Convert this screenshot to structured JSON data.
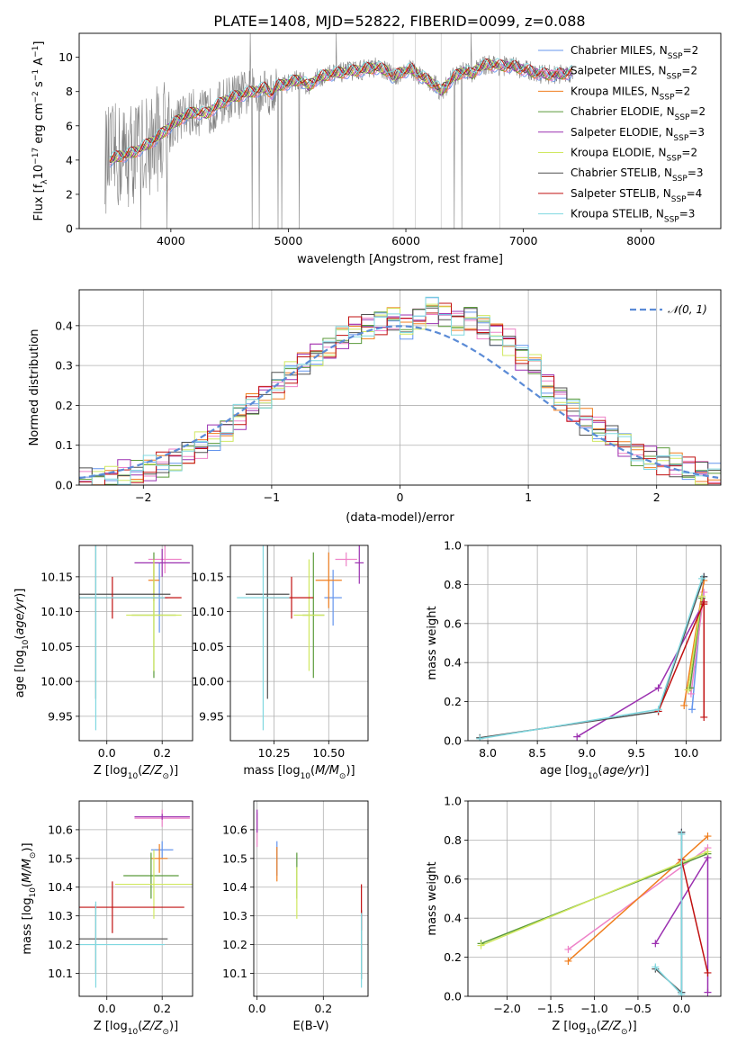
{
  "figure": {
    "title": "PLATE=1408, MJD=52822, FIBERID=0099, z=0.088"
  },
  "chart_data": [
    {
      "id": "spectrum",
      "type": "line",
      "xlabel": "wavelength [Angstrom, rest frame]",
      "ylabel": "Flux [f",
      "ylabel_parts": [
        "Flux [f",
        "λ",
        "10",
        "−17",
        " erg cm",
        "−2",
        " s",
        "−1",
        " A",
        "−1",
        "]"
      ],
      "xlim": [
        3220,
        8680
      ],
      "ylim": [
        0,
        11.4
      ],
      "xticks": [
        4000,
        5000,
        6000,
        7000,
        8000
      ],
      "yticks": [
        0,
        2,
        4,
        6,
        8,
        10
      ],
      "grid": false,
      "legend_position": "right",
      "legend": [
        {
          "pre": "Chabrier MILES, N",
          "sub": "SSP",
          "post": "=2",
          "color": "#6495ed"
        },
        {
          "pre": "Salpeter MILES, N",
          "sub": "SSP",
          "post": "=2",
          "color": "#ee82c8"
        },
        {
          "pre": "Kroupa MILES, N",
          "sub": "SSP",
          "post": "=2",
          "color": "#f07e1e"
        },
        {
          "pre": "Chabrier ELODIE, N",
          "sub": "SSP",
          "post": "=2",
          "color": "#5a9a3a"
        },
        {
          "pre": "Salpeter ELODIE, N",
          "sub": "SSP",
          "post": "=3",
          "color": "#9b30b0"
        },
        {
          "pre": "Kroupa ELODIE, N",
          "sub": "SSP",
          "post": "=2",
          "color": "#d0e860"
        },
        {
          "pre": "Chabrier STELIB, N",
          "sub": "SSP",
          "post": "=3",
          "color": "#505050"
        },
        {
          "pre": "Salpeter STELIB, N",
          "sub": "SSP",
          "post": "=4",
          "color": "#c01010"
        },
        {
          "pre": "Kroupa STELIB, N",
          "sub": "SSP",
          "post": "=3",
          "color": "#80d8e0"
        }
      ],
      "observed_color": "#808080",
      "model_x": [
        3480,
        3550,
        3620,
        3700,
        3800,
        3900,
        4000,
        4100,
        4200,
        4300,
        4400,
        4500,
        4600,
        4700,
        4800,
        4860,
        4900,
        5000,
        5100,
        5175,
        5250,
        5350,
        5450,
        5550,
        5650,
        5750,
        5850,
        5893,
        5950,
        6050,
        6150,
        6250,
        6300,
        6400,
        6500,
        6563,
        6600,
        6700,
        6800,
        6900,
        7000,
        7100,
        7200,
        7300,
        7400,
        7500,
        7600,
        7700,
        7800,
        7900,
        8000,
        8100,
        8200,
        8300,
        8400
      ],
      "model_y": [
        4.0,
        4.2,
        4.3,
        4.5,
        4.9,
        5.4,
        6.0,
        6.5,
        6.8,
        6.7,
        7.2,
        7.6,
        7.8,
        8.0,
        8.2,
        7.9,
        8.3,
        8.5,
        8.7,
        8.3,
        8.8,
        9.0,
        9.1,
        9.2,
        9.3,
        9.4,
        9.2,
        8.8,
        9.1,
        9.3,
        8.8,
        8.4,
        8.0,
        8.8,
        9.2,
        9.0,
        9.3,
        9.6,
        9.5,
        9.5,
        9.3,
        9.1,
        9.0,
        9.0,
        9.1,
        9.2,
        9.3,
        9.3,
        9.4,
        9.4,
        9.4,
        9.5,
        9.5,
        9.5,
        9.6
      ]
    },
    {
      "id": "residuals",
      "type": "histogram",
      "xlabel": "(data-model)/error",
      "ylabel": "Normed distribution",
      "xlim": [
        -2.5,
        2.5
      ],
      "ylim": [
        0,
        0.49
      ],
      "xticks": [
        -2,
        -1,
        0,
        1,
        2
      ],
      "yticks": [
        0.0,
        0.1,
        0.2,
        0.3,
        0.4
      ],
      "grid": true,
      "bin_width": 0.1,
      "legend_position": "upper right",
      "legend_label": "𝒩(0, 1)",
      "gaussian_color": "#5b8bd6",
      "base_bins_x0": [
        -2.5,
        -2.4,
        -2.3,
        -2.2,
        -2.1,
        -2.0,
        -1.9,
        -1.8,
        -1.7,
        -1.6,
        -1.5,
        -1.4,
        -1.3,
        -1.2,
        -1.1,
        -1.0,
        -0.9,
        -0.8,
        -0.7,
        -0.6,
        -0.5,
        -0.4,
        -0.3,
        -0.2,
        -0.1,
        0.0,
        0.1,
        0.2,
        0.3,
        0.4,
        0.5,
        0.6,
        0.7,
        0.8,
        0.9,
        1.0,
        1.1,
        1.2,
        1.3,
        1.4,
        1.5,
        1.6,
        1.7,
        1.8,
        1.9,
        2.0,
        2.1,
        2.2,
        2.3,
        2.4
      ],
      "base_bins_y": [
        0.01,
        0.01,
        0.02,
        0.03,
        0.03,
        0.04,
        0.05,
        0.06,
        0.08,
        0.1,
        0.12,
        0.14,
        0.17,
        0.2,
        0.22,
        0.25,
        0.28,
        0.31,
        0.33,
        0.34,
        0.37,
        0.39,
        0.4,
        0.41,
        0.42,
        0.4,
        0.42,
        0.44,
        0.43,
        0.41,
        0.42,
        0.4,
        0.38,
        0.36,
        0.32,
        0.3,
        0.25,
        0.22,
        0.19,
        0.16,
        0.14,
        0.12,
        0.1,
        0.08,
        0.07,
        0.06,
        0.05,
        0.04,
        0.03,
        0.02
      ],
      "series": [
        {
          "name": "Chabrier MILES",
          "color": "#6495ed"
        },
        {
          "name": "Salpeter MILES",
          "color": "#ee82c8"
        },
        {
          "name": "Kroupa MILES",
          "color": "#f07e1e"
        },
        {
          "name": "Chabrier ELODIE",
          "color": "#5a9a3a"
        },
        {
          "name": "Salpeter ELODIE",
          "color": "#9b30b0"
        },
        {
          "name": "Kroupa ELODIE",
          "color": "#d0e860"
        },
        {
          "name": "Chabrier STELIB",
          "color": "#505050"
        },
        {
          "name": "Salpeter STELIB",
          "color": "#c01010"
        },
        {
          "name": "Kroupa STELIB",
          "color": "#80d8e0"
        }
      ]
    },
    {
      "id": "age_vs_Z",
      "type": "errorbar",
      "xlabel": "Z [log",
      "xlabel_parts": [
        "Z [log",
        "10",
        "(Z/Z",
        "⊙",
        ")]"
      ],
      "ylabel_parts": [
        "age  [log",
        "10",
        "(age/yr)]"
      ],
      "xlim": [
        -0.1,
        0.31
      ],
      "ylim": [
        9.915,
        10.195
      ],
      "xticks": [
        0.0,
        0.2
      ],
      "yticks": [
        9.95,
        10.0,
        10.05,
        10.1,
        10.15
      ],
      "grid": true,
      "points": [
        {
          "x": 0.19,
          "y": 10.12,
          "xerr": 0.03,
          "yerr": 0.05,
          "color": "#6495ed"
        },
        {
          "x": 0.21,
          "y": 10.175,
          "xerr": 0.06,
          "yerr": 0.02,
          "color": "#ee82c8"
        },
        {
          "x": 0.17,
          "y": 10.145,
          "xerr": 0.02,
          "yerr": 0.03,
          "color": "#f07e1e"
        },
        {
          "x": 0.17,
          "y": 10.095,
          "xerr": 0.08,
          "yerr": 0.09,
          "color": "#5a9a3a"
        },
        {
          "x": 0.2,
          "y": 10.17,
          "xerr": 0.1,
          "yerr": 0.02,
          "color": "#9b30b0"
        },
        {
          "x": 0.17,
          "y": 10.095,
          "xerr": 0.1,
          "yerr": 0.08,
          "color": "#d0e860"
        },
        {
          "x": -0.04,
          "y": 10.125,
          "xerr": 0.27,
          "yerr": 0.15,
          "color": "#505050"
        },
        {
          "x": 0.02,
          "y": 10.12,
          "xerr": 0.25,
          "yerr": 0.03,
          "color": "#c01010"
        },
        {
          "x": -0.04,
          "y": 10.12,
          "xerr": 0.25,
          "yerr": 0.19,
          "color": "#80d8e0"
        }
      ]
    },
    {
      "id": "age_vs_mass",
      "type": "errorbar",
      "xlabel_parts": [
        "mass [log",
        "10",
        "(M/M",
        "⊙",
        ")]"
      ],
      "xlim": [
        10.05,
        10.68
      ],
      "ylim": [
        9.915,
        10.195
      ],
      "xticks": [
        10.25,
        10.5
      ],
      "yticks": [
        9.95,
        10.0,
        10.05,
        10.1,
        10.15
      ],
      "grid": true,
      "points": [
        {
          "x": 10.52,
          "y": 10.12,
          "xerr": 0.04,
          "yerr": 0.04,
          "color": "#6495ed"
        },
        {
          "x": 10.58,
          "y": 10.175,
          "xerr": 0.05,
          "yerr": 0.01,
          "color": "#ee82c8"
        },
        {
          "x": 10.5,
          "y": 10.145,
          "xerr": 0.06,
          "yerr": 0.04,
          "color": "#f07e1e"
        },
        {
          "x": 10.43,
          "y": 10.095,
          "xerr": 0.05,
          "yerr": 0.09,
          "color": "#5a9a3a"
        },
        {
          "x": 10.64,
          "y": 10.17,
          "xerr": 0.02,
          "yerr": 0.03,
          "color": "#9b30b0"
        },
        {
          "x": 10.41,
          "y": 10.095,
          "xerr": 0.07,
          "yerr": 0.08,
          "color": "#d0e860"
        },
        {
          "x": 10.22,
          "y": 10.125,
          "xerr": 0.1,
          "yerr": 0.15,
          "color": "#505050"
        },
        {
          "x": 10.33,
          "y": 10.12,
          "xerr": 0.1,
          "yerr": 0.03,
          "color": "#c01010"
        },
        {
          "x": 10.2,
          "y": 10.12,
          "xerr": 0.12,
          "yerr": 0.19,
          "color": "#80d8e0"
        }
      ]
    },
    {
      "id": "weight_vs_age",
      "type": "line",
      "xlabel_parts": [
        "age  [log",
        "10",
        "(age/yr)]"
      ],
      "ylabel": "mass weight",
      "xlim": [
        7.8,
        10.35
      ],
      "ylim": [
        0.0,
        1.0
      ],
      "xticks": [
        8.0,
        8.5,
        9.0,
        9.5,
        10.0
      ],
      "yticks": [
        0.0,
        0.2,
        0.4,
        0.6,
        0.8,
        1.0
      ],
      "grid": true,
      "series": [
        {
          "name": "Chabrier MILES",
          "color": "#6495ed",
          "x": [
            10.06,
            10.18
          ],
          "y": [
            0.16,
            0.84
          ]
        },
        {
          "name": "Salpeter MILES",
          "color": "#ee82c8",
          "x": [
            10.05,
            10.18
          ],
          "y": [
            0.24,
            0.76
          ]
        },
        {
          "name": "Kroupa MILES",
          "color": "#f07e1e",
          "x": [
            9.98,
            10.18
          ],
          "y": [
            0.18,
            0.82
          ]
        },
        {
          "name": "Chabrier ELODIE",
          "color": "#5a9a3a",
          "x": [
            10.04,
            10.16
          ],
          "y": [
            0.27,
            0.73
          ]
        },
        {
          "name": "Salpeter ELODIE",
          "color": "#9b30b0",
          "x": [
            8.9,
            9.72,
            10.18
          ],
          "y": [
            0.02,
            0.27,
            0.71
          ]
        },
        {
          "name": "Kroupa ELODIE",
          "color": "#d0e860",
          "x": [
            10.02,
            10.16
          ],
          "y": [
            0.26,
            0.74
          ]
        },
        {
          "name": "Chabrier STELIB",
          "color": "#505050",
          "x": [
            7.92,
            9.72,
            10.18
          ],
          "y": [
            0.015,
            0.15,
            0.84
          ]
        },
        {
          "name": "Salpeter STELIB",
          "color": "#c01010",
          "x": [
            9.72,
            10.18,
            10.18,
            10.18
          ],
          "y": [
            0.15,
            0.71,
            0.7,
            0.12
          ]
        },
        {
          "name": "Kroupa STELIB",
          "color": "#80d8e0",
          "x": [
            7.92,
            9.72,
            10.16
          ],
          "y": [
            0.01,
            0.16,
            0.83
          ]
        }
      ]
    },
    {
      "id": "mass_vs_Z",
      "type": "errorbar",
      "xlabel_parts": [
        "Z [log",
        "10",
        "(Z/Z",
        "⊙",
        ")]"
      ],
      "ylabel_parts": [
        "mass [log",
        "10",
        "(M/M",
        "⊙",
        ")]"
      ],
      "xlim": [
        -0.1,
        0.31
      ],
      "ylim": [
        10.02,
        10.7
      ],
      "xticks": [
        0.0,
        0.2
      ],
      "yticks": [
        10.1,
        10.2,
        10.3,
        10.4,
        10.5,
        10.6
      ],
      "grid": true,
      "points": [
        {
          "x": 0.2,
          "y": 10.53,
          "xerr": 0.04,
          "yerr": 0.03,
          "color": "#6495ed"
        },
        {
          "x": 0.2,
          "y": 10.64,
          "xerr": 0.1,
          "yerr": 0.03,
          "color": "#ee82c8"
        },
        {
          "x": 0.19,
          "y": 10.5,
          "xerr": 0.03,
          "yerr": 0.05,
          "color": "#f07e1e"
        },
        {
          "x": 0.16,
          "y": 10.44,
          "xerr": 0.1,
          "yerr": 0.08,
          "color": "#5a9a3a"
        },
        {
          "x": 0.2,
          "y": 10.645,
          "xerr": 0.1,
          "yerr": 0.01,
          "color": "#9b30b0"
        },
        {
          "x": 0.17,
          "y": 10.41,
          "xerr": 0.14,
          "yerr": 0.12,
          "color": "#d0e860"
        },
        {
          "x": -0.04,
          "y": 10.22,
          "xerr": 0.26,
          "yerr": 0.12,
          "color": "#505050"
        },
        {
          "x": 0.02,
          "y": 10.33,
          "xerr": 0.26,
          "yerr": 0.09,
          "color": "#c01010"
        },
        {
          "x": -0.04,
          "y": 10.2,
          "xerr": 0.25,
          "yerr": 0.15,
          "color": "#80d8e0"
        }
      ]
    },
    {
      "id": "mass_vs_ebv",
      "type": "errorbar",
      "xlabel": "E(B-V)",
      "xlim": [
        -0.01,
        0.335
      ],
      "ylim": [
        10.02,
        10.7
      ],
      "xticks": [
        0.0,
        0.2
      ],
      "yticks": [
        10.1,
        10.2,
        10.3,
        10.4,
        10.5,
        10.6
      ],
      "grid": true,
      "points": [
        {
          "x": 0.06,
          "y": 10.5,
          "xerr": 0,
          "yerr": 0.06,
          "color": "#6495ed"
        },
        {
          "x": 0.0,
          "y": 10.6,
          "xerr": 0,
          "yerr": 0.06,
          "color": "#ee82c8"
        },
        {
          "x": 0.06,
          "y": 10.48,
          "xerr": 0,
          "yerr": 0.06,
          "color": "#f07e1e"
        },
        {
          "x": 0.12,
          "y": 10.44,
          "xerr": 0,
          "yerr": 0.08,
          "color": "#5a9a3a"
        },
        {
          "x": 0.0,
          "y": 10.63,
          "xerr": 0,
          "yerr": 0.04,
          "color": "#9b30b0"
        },
        {
          "x": 0.12,
          "y": 10.38,
          "xerr": 0,
          "yerr": 0.09,
          "color": "#d0e860"
        },
        {
          "x": 0.315,
          "y": 10.2,
          "xerr": 0,
          "yerr": 0.12,
          "color": "#505050"
        },
        {
          "x": 0.315,
          "y": 10.33,
          "xerr": 0,
          "yerr": 0.08,
          "color": "#c01010"
        },
        {
          "x": 0.315,
          "y": 10.18,
          "xerr": 0,
          "yerr": 0.13,
          "color": "#80d8e0"
        }
      ]
    },
    {
      "id": "weight_vs_Z",
      "type": "line",
      "xlabel_parts": [
        "Z [log",
        "10",
        "(Z/Z",
        "⊙",
        ")]"
      ],
      "ylabel": "mass weight",
      "xlim": [
        -2.45,
        0.45
      ],
      "ylim": [
        0.0,
        1.0
      ],
      "xticks": [
        -2.0,
        -1.5,
        -1.0,
        -0.5,
        0.0
      ],
      "yticks": [
        0.0,
        0.2,
        0.4,
        0.6,
        0.8,
        1.0
      ],
      "grid": true,
      "series": [
        {
          "name": "Chabrier MILES",
          "color": "#6495ed",
          "x": [
            0.0,
            0.0
          ],
          "y": [
            0.02,
            0.84
          ]
        },
        {
          "name": "Salpeter MILES",
          "color": "#ee82c8",
          "x": [
            -1.3,
            0.3
          ],
          "y": [
            0.24,
            0.76
          ]
        },
        {
          "name": "Kroupa MILES",
          "color": "#f07e1e",
          "x": [
            -1.3,
            0.0,
            0.3
          ],
          "y": [
            0.18,
            0.7,
            0.82
          ]
        },
        {
          "name": "Chabrier ELODIE",
          "color": "#5a9a3a",
          "x": [
            -2.3,
            0.3
          ],
          "y": [
            0.27,
            0.73
          ]
        },
        {
          "name": "Salpeter ELODIE",
          "color": "#9b30b0",
          "x": [
            -0.3,
            0.3,
            0.3
          ],
          "y": [
            0.27,
            0.71,
            0.02
          ]
        },
        {
          "name": "Kroupa ELODIE",
          "color": "#d0e860",
          "x": [
            -2.3,
            0.3
          ],
          "y": [
            0.26,
            0.74
          ]
        },
        {
          "name": "Chabrier STELIB",
          "color": "#505050",
          "x": [
            -0.3,
            0.0,
            0.0
          ],
          "y": [
            0.14,
            0.02,
            0.84
          ]
        },
        {
          "name": "Salpeter STELIB",
          "color": "#c01010",
          "x": [
            0.0,
            0.3
          ],
          "y": [
            0.7,
            0.12
          ]
        },
        {
          "name": "Kroupa STELIB",
          "color": "#80d8e0",
          "x": [
            -0.3,
            0.0,
            0.0
          ],
          "y": [
            0.15,
            0.01,
            0.83
          ]
        }
      ]
    }
  ]
}
